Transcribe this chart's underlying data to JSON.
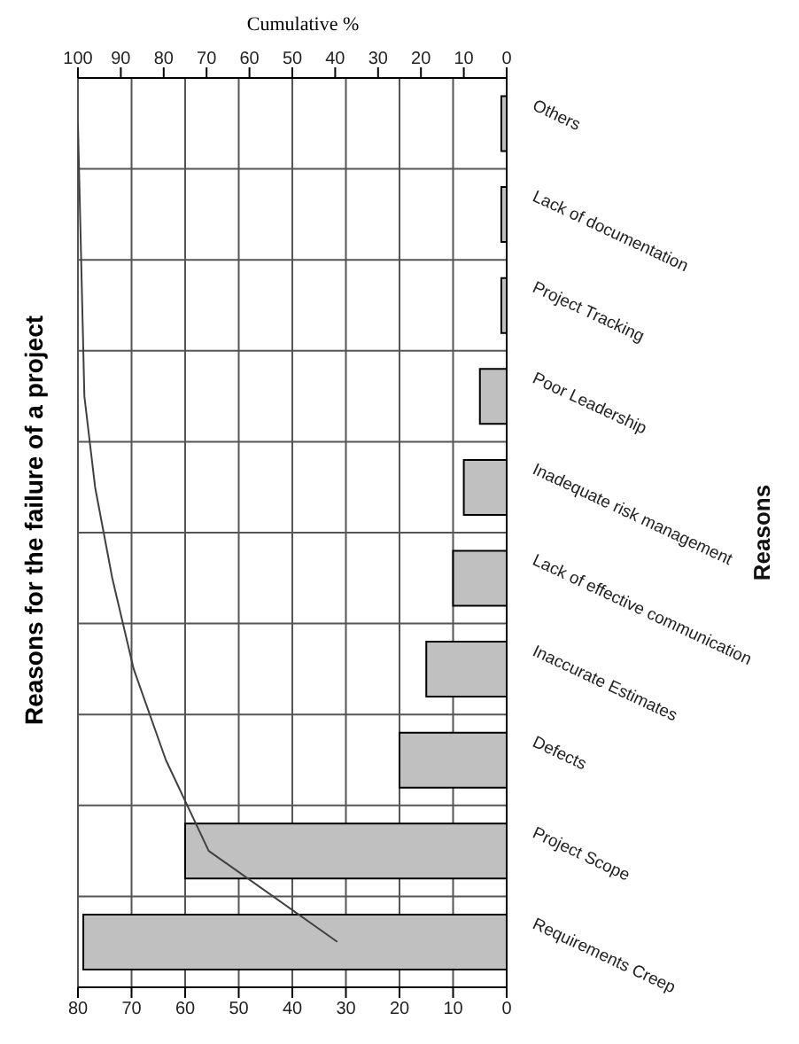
{
  "chart_data": {
    "type": "bar",
    "orientation": "horizontal",
    "title": "Reasons for the failure of a project",
    "ylabel": "Reasons",
    "x2label": "Cumulative %",
    "categories": [
      "Others",
      "Lack of documentation",
      "Project Tracking",
      "Poor Leadership",
      "Inadequate risk management",
      "Lack of effective communication",
      "Inaccurate Estimates",
      "Defects",
      "Project Scope",
      "Requirements Creep"
    ],
    "series": [
      {
        "color": "#c0c0c0",
        "values": [
          1,
          1,
          1,
          5,
          8,
          10,
          15,
          20,
          60,
          79
        ]
      },
      {
        "type": "line",
        "axis": "x2",
        "color": "#404040",
        "values": [
          100,
          99.5,
          99,
          98.5,
          96,
          92,
          87,
          79.5,
          69.5,
          39.5
        ]
      }
    ],
    "xlim": [
      80,
      0
    ],
    "xticks": [
      0,
      10,
      20,
      30,
      40,
      50,
      60,
      70,
      80
    ],
    "x2lim": [
      100,
      0
    ],
    "x2ticks": [
      0,
      10,
      20,
      30,
      40,
      50,
      60,
      70,
      80,
      90,
      100
    ],
    "grid": true,
    "marker": "none"
  }
}
